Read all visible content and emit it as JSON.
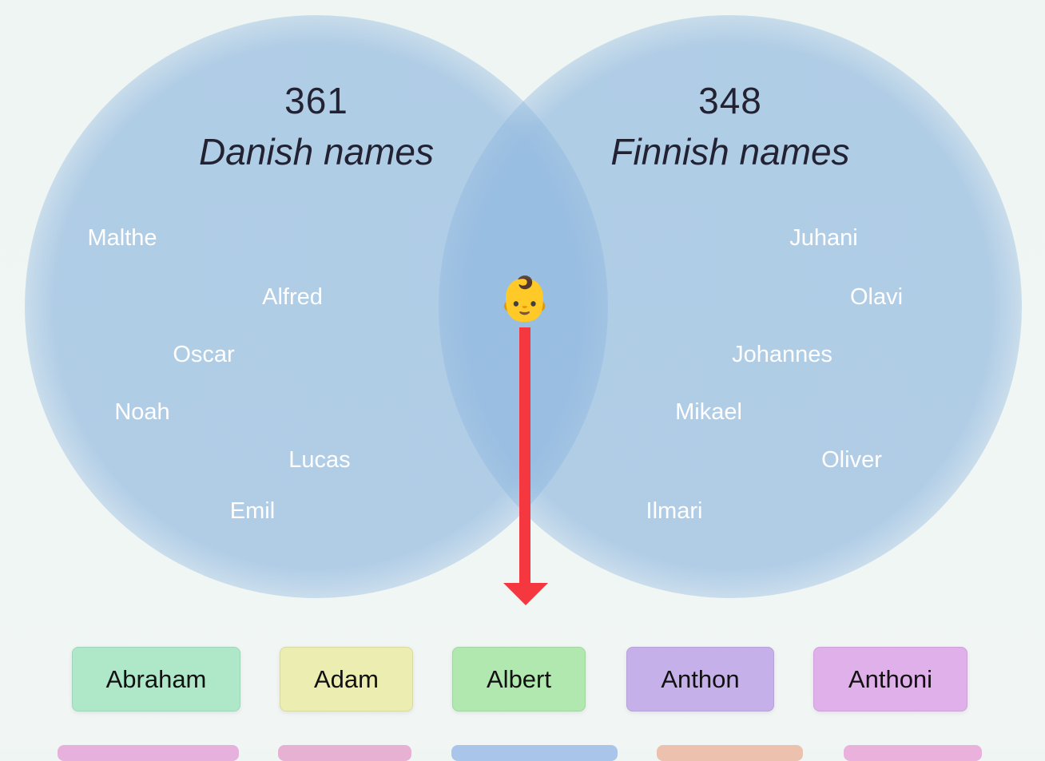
{
  "venn": {
    "left": {
      "count": 361,
      "label": "Danish names",
      "names": [
        "Malthe",
        "Alfred",
        "Oscar",
        "Noah",
        "Lucas",
        "Emil"
      ]
    },
    "right": {
      "count": 348,
      "label": "Finnish names",
      "names": [
        "Juhani",
        "Olavi",
        "Johannes",
        "Mikael",
        "Oliver",
        "Ilmari"
      ]
    },
    "center": {
      "icon": "👶"
    }
  },
  "results": [
    "Abraham",
    "Adam",
    "Albert",
    "Anthon",
    "Anthoni"
  ]
}
